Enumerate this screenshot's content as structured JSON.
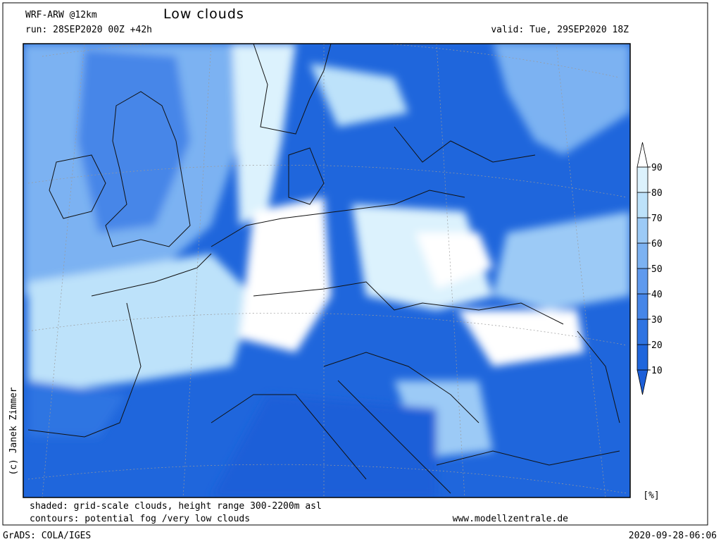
{
  "header": {
    "model": "WRF-ARW @12km",
    "title": "Low clouds",
    "run": "run: 28SEP2020 00Z +42h",
    "valid": "valid: Tue, 29SEP2020 18Z"
  },
  "colorbar": {
    "ticks": [
      10,
      20,
      30,
      40,
      50,
      60,
      70,
      80,
      90
    ],
    "unit": "[%]",
    "colors": [
      "#1c5fd8",
      "#1f66dc",
      "#2f74e2",
      "#4686e8",
      "#5f9aee",
      "#7cb2f2",
      "#9ccaf6",
      "#bde2fa",
      "#dcf2fd",
      "#ffffff"
    ]
  },
  "credit": "(c) Janek Zimmer",
  "footer": {
    "shaded": "shaded: grid-scale clouds, height range 300-2200m asl",
    "contours": "contours: potential fog /very low clouds",
    "website": "www.modellzentrale.de",
    "grads": "GrADS: COLA/IGES",
    "timestamp": "2020-09-28-06:06"
  }
}
